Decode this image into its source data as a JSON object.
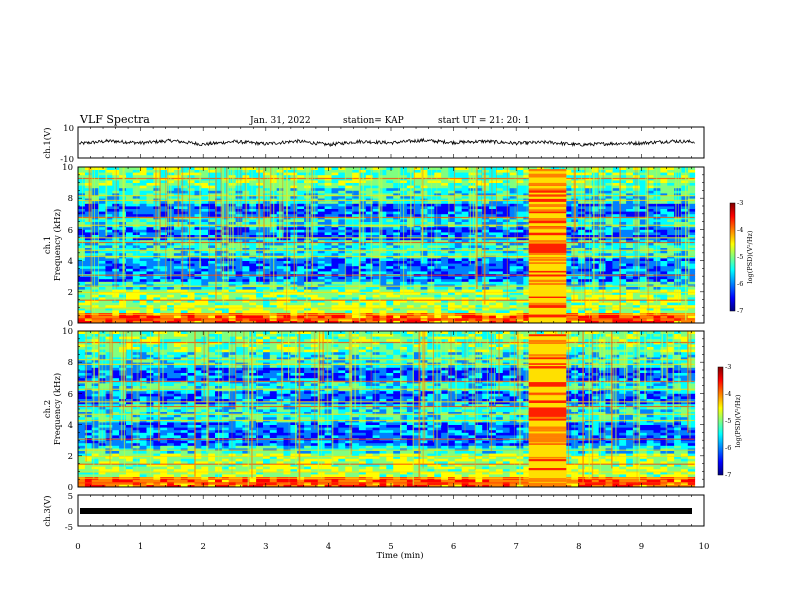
{
  "header": {
    "title": "VLF Spectra",
    "date": "Jan. 31, 2022",
    "station": "station= KAP",
    "start": "start UT =  21: 20: 1"
  },
  "chart_data": [
    {
      "type": "line",
      "panel": "ch1-waveform",
      "ylabel": "ch.1(V)",
      "ylim": [
        -10,
        10
      ],
      "yticks": [
        "10",
        "-10"
      ],
      "xlim": [
        0,
        10
      ],
      "color": "#000000",
      "note_values": "noisy waveform oscillating roughly between -2.5 and 2.5 V",
      "trend": [
        [
          0,
          -0.8
        ],
        [
          0.5,
          1.0
        ],
        [
          1,
          -0.3
        ],
        [
          1.5,
          1.2
        ],
        [
          2,
          -1.2
        ],
        [
          2.5,
          0.6
        ],
        [
          3,
          -0.9
        ],
        [
          3.5,
          0.9
        ],
        [
          4,
          -1.4
        ],
        [
          4.5,
          0.7
        ],
        [
          5,
          -0.2
        ],
        [
          5.5,
          1.4
        ],
        [
          6,
          0.0
        ],
        [
          6.5,
          0.8
        ],
        [
          7,
          -0.5
        ],
        [
          7.5,
          0.2
        ],
        [
          8,
          -1.5
        ],
        [
          8.5,
          -0.7
        ],
        [
          9,
          -0.4
        ],
        [
          9.5,
          0.9
        ],
        [
          9.85,
          0.4
        ]
      ]
    },
    {
      "type": "heatmap",
      "panel": "ch1-spectrogram",
      "ylabel_lines": [
        "ch.1",
        "Frequency (kHz)"
      ],
      "ylim": [
        0,
        10
      ],
      "yticks": [
        "0",
        "2",
        "4",
        "6",
        "8",
        "10"
      ],
      "xlim": [
        0,
        10
      ],
      "data_x_end": 9.85,
      "burst": {
        "x_start": 7.2,
        "x_end": 7.8
      }
    },
    {
      "type": "heatmap",
      "panel": "ch2-spectrogram",
      "ylabel_lines": [
        "ch.2",
        "Frequency (kHz)"
      ],
      "ylim": [
        0,
        10
      ],
      "yticks": [
        "0",
        "2",
        "4",
        "6",
        "8",
        "10"
      ],
      "xlim": [
        0,
        10
      ],
      "data_x_end": 9.85,
      "burst": {
        "x_start": 7.2,
        "x_end": 7.8
      }
    },
    {
      "type": "line",
      "panel": "ch3-trace",
      "ylabel": "ch.3(V)",
      "ylim": [
        -5,
        5
      ],
      "yticks": [
        "5",
        "0",
        "-5"
      ],
      "xlim": [
        0,
        10
      ],
      "level": -0.6,
      "color": "#000000"
    }
  ],
  "xaxis": {
    "label": "Time (min)",
    "ticks": [
      "0",
      "1",
      "2",
      "3",
      "4",
      "5",
      "6",
      "7",
      "8",
      "9",
      "10"
    ]
  },
  "colorbar": {
    "label": "log(PSD)(V²/Hz)",
    "ticks": [
      "-3",
      "-4",
      "-5",
      "-6",
      "-7"
    ],
    "range": [
      -7,
      -3
    ],
    "colors": [
      "#00007f",
      "#0000ff",
      "#0080ff",
      "#00ffff",
      "#80ff80",
      "#ffff00",
      "#ff8000",
      "#ff0000",
      "#7f0000"
    ]
  }
}
